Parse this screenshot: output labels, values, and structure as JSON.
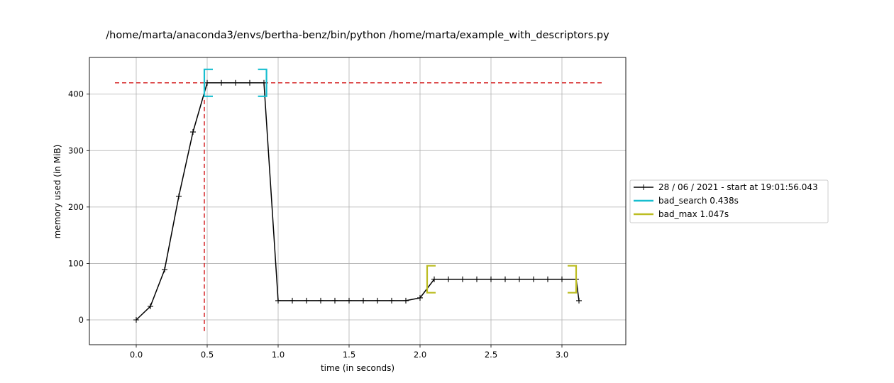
{
  "chart_data": {
    "type": "line",
    "title": "/home/marta/anaconda3/envs/bertha-benz/bin/python /home/marta/example_with_descriptors.py",
    "xlabel": "time (in seconds)",
    "ylabel": "memory used (in MiB)",
    "xlim": [
      -0.33,
      3.45
    ],
    "ylim": [
      -44,
      465
    ],
    "xticks": [
      0.0,
      0.5,
      1.0,
      1.5,
      2.0,
      2.5,
      3.0
    ],
    "xtick_labels": [
      "0.0",
      "0.5",
      "1.0",
      "1.5",
      "2.0",
      "2.5",
      "3.0"
    ],
    "yticks": [
      0,
      100,
      200,
      300,
      400
    ],
    "ytick_labels": [
      "0",
      "100",
      "200",
      "300",
      "400"
    ],
    "grid": true,
    "legend_position": "outside-right",
    "series": [
      {
        "name": "28 / 06 / 2021 - start at 19:01:56.043",
        "color": "#000000",
        "marker": "+",
        "x": [
          0.0,
          0.1,
          0.2,
          0.3,
          0.4,
          0.5,
          0.6,
          0.7,
          0.8,
          0.9,
          1.0,
          1.1,
          1.2,
          1.3,
          1.4,
          1.5,
          1.6,
          1.7,
          1.8,
          1.9,
          2.0,
          2.1,
          2.2,
          2.3,
          2.4,
          2.5,
          2.6,
          2.7,
          2.8,
          2.9,
          3.0,
          3.1,
          3.12
        ],
        "y": [
          0,
          24,
          89,
          219,
          333,
          420,
          420,
          420,
          420,
          420,
          34,
          34,
          34,
          34,
          34,
          34,
          34,
          34,
          34,
          34,
          39,
          72,
          72,
          72,
          72,
          72,
          72,
          72,
          72,
          72,
          72,
          72,
          34
        ]
      }
    ],
    "brackets": [
      {
        "name": "bad_search 0.438s",
        "color": "#17becf",
        "start": 0.48,
        "end": 0.918,
        "mem": 420
      },
      {
        "name": "bad_max 1.047s",
        "color": "#bcbd22",
        "start": 2.05,
        "end": 3.1,
        "mem": 72
      }
    ],
    "max_lines": {
      "color": "#d62728",
      "memory": 420,
      "time": 0.48,
      "hline_x": [
        -0.15,
        3.28
      ],
      "vline_y": [
        -20,
        420
      ]
    }
  }
}
